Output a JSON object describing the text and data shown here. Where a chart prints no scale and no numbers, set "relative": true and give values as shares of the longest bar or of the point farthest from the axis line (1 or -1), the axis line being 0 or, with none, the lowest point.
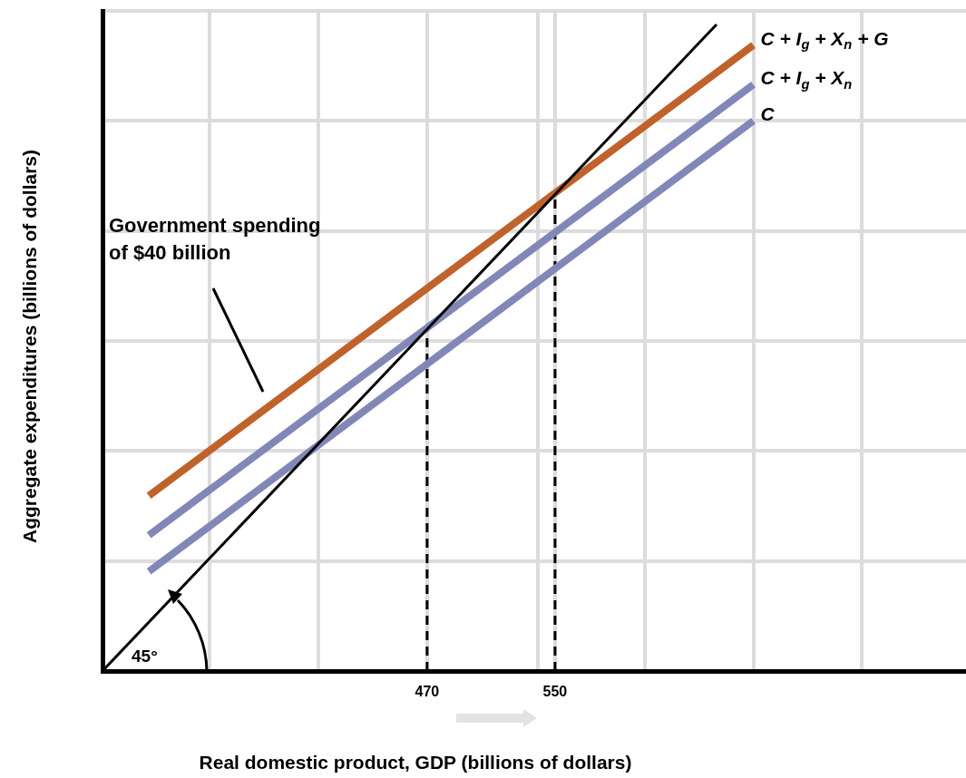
{
  "chart_data": {
    "type": "line",
    "xlabel": "Real domestic product, GDP (billions of dollars)",
    "ylabel": "Aggregate expenditures (billions of dollars)",
    "relative": true,
    "grid": true,
    "legend": false,
    "marker": "none",
    "xlim": [
      267,
      807
    ],
    "xticks": [
      {
        "value": 334,
        "label": null
      },
      {
        "value": 402,
        "label": null
      },
      470,
      {
        "value": 539,
        "label": null
      },
      550,
      {
        "value": 606,
        "label": null
      },
      {
        "value": 674,
        "label": null
      },
      {
        "value": 742,
        "label": null
      }
    ],
    "series": [
      {
        "x": [
          267,
          651
        ],
        "values": [
          0,
          1
        ],
        "color": "#000000",
        "line_style": "solid"
      },
      {
        "name": "C + I$_{g}$ + X$_{n}$ + G",
        "x": [
          296,
          674
        ],
        "values": [
          0.271,
          0.968
        ],
        "color": "#c0622b",
        "line_style": "solid"
      },
      {
        "name": "C + I$_{g}$ + X$_{n}$",
        "x": [
          296,
          674
        ],
        "values": [
          0.21,
          0.907
        ],
        "color": "#8287b8",
        "line_style": "solid"
      },
      {
        "name": "C",
        "x": [
          296,
          674
        ],
        "values": [
          0.154,
          0.851
        ],
        "color": "#8287b8",
        "line_style": "solid"
      },
      {
        "x": [
          470,
          470
        ],
        "values": [
          0,
          0.529
        ],
        "color": "#000000",
        "line_style": "dashed"
      },
      {
        "x": [
          550,
          550
        ],
        "values": [
          0,
          0.736
        ],
        "color": "#000000",
        "line_style": "dashed"
      }
    ],
    "annotations": [
      "Government spending of $40 billion",
      "45°"
    ]
  }
}
